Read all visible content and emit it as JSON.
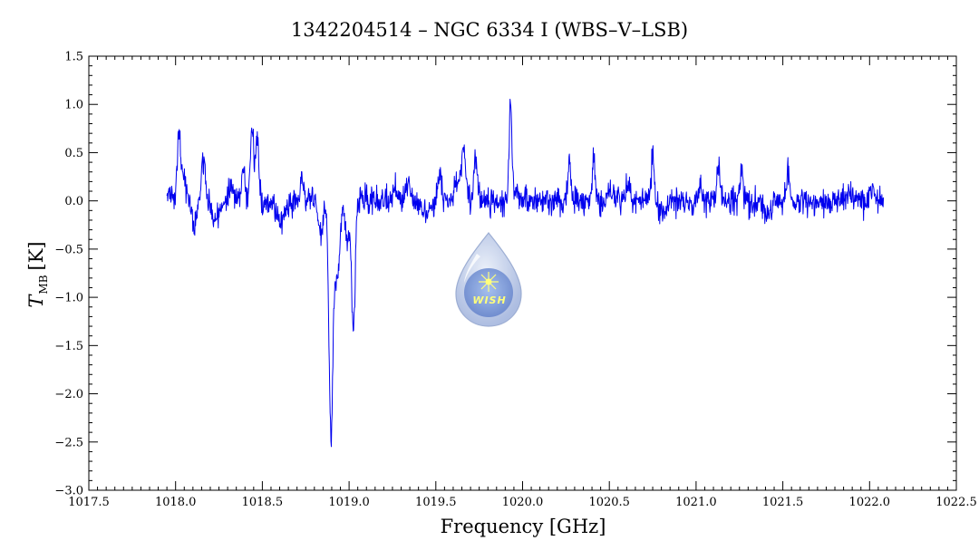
{
  "chart_data": {
    "type": "line",
    "title": "1342204514 – NGC 6334 I (WBS–V–LSB)",
    "xlabel": "Frequency [GHz]",
    "ylabel_main": "T",
    "ylabel_sub": "MB",
    "ylabel_unit": "[K]",
    "xlim": [
      1017.5,
      1022.5
    ],
    "ylim": [
      -3.0,
      1.5
    ],
    "x_ticks": [
      1017.5,
      1018.0,
      1018.5,
      1019.0,
      1019.5,
      1020.0,
      1020.5,
      1021.0,
      1021.5,
      1022.0,
      1022.5
    ],
    "x_tick_labels": [
      "1017.5",
      "1018.0",
      "1018.5",
      "1019.0",
      "1019.5",
      "1020.0",
      "1020.5",
      "1021.0",
      "1021.5",
      "1022.0",
      "1022.5"
    ],
    "y_ticks": [
      -3.0,
      -2.5,
      -2.0,
      -1.5,
      -1.0,
      -0.5,
      0.0,
      0.5,
      1.0,
      1.5
    ],
    "y_tick_labels": [
      "−3.0",
      "−2.5",
      "−2.0",
      "−1.5",
      "−1.0",
      "−0.5",
      "0.0",
      "0.5",
      "1.0",
      "1.5"
    ],
    "grid": false,
    "line_color": "#0000ee",
    "x_range": [
      1017.95,
      1022.08
    ],
    "noise_level": 0.07,
    "features": [
      {
        "center": 1017.96,
        "amplitude": 0.12,
        "width": 0.012
      },
      {
        "center": 1018.02,
        "amplitude": 0.72,
        "width": 0.01
      },
      {
        "center": 1018.05,
        "amplitude": 0.25,
        "width": 0.01
      },
      {
        "center": 1018.11,
        "amplitude": -0.22,
        "width": 0.015
      },
      {
        "center": 1018.16,
        "amplitude": 0.42,
        "width": 0.012
      },
      {
        "center": 1018.23,
        "amplitude": -0.18,
        "width": 0.02
      },
      {
        "center": 1018.32,
        "amplitude": 0.15,
        "width": 0.015
      },
      {
        "center": 1018.39,
        "amplitude": 0.3,
        "width": 0.01
      },
      {
        "center": 1018.44,
        "amplitude": 0.72,
        "width": 0.01
      },
      {
        "center": 1018.47,
        "amplitude": 0.62,
        "width": 0.01
      },
      {
        "center": 1018.61,
        "amplitude": -0.18,
        "width": 0.025
      },
      {
        "center": 1018.73,
        "amplitude": 0.22,
        "width": 0.01
      },
      {
        "center": 1018.84,
        "amplitude": -0.35,
        "width": 0.015
      },
      {
        "center": 1018.895,
        "amplitude": -2.45,
        "width": 0.011
      },
      {
        "center": 1018.93,
        "amplitude": -0.85,
        "width": 0.015
      },
      {
        "center": 1018.99,
        "amplitude": -0.45,
        "width": 0.012
      },
      {
        "center": 1019.025,
        "amplitude": -1.4,
        "width": 0.01
      },
      {
        "center": 1019.26,
        "amplitude": 0.14,
        "width": 0.012
      },
      {
        "center": 1019.34,
        "amplitude": 0.2,
        "width": 0.012
      },
      {
        "center": 1019.44,
        "amplitude": -0.15,
        "width": 0.03
      },
      {
        "center": 1019.52,
        "amplitude": 0.28,
        "width": 0.012
      },
      {
        "center": 1019.62,
        "amplitude": 0.22,
        "width": 0.015
      },
      {
        "center": 1019.66,
        "amplitude": 0.58,
        "width": 0.012
      },
      {
        "center": 1019.73,
        "amplitude": 0.48,
        "width": 0.009
      },
      {
        "center": 1019.93,
        "amplitude": 1.02,
        "width": 0.008
      },
      {
        "center": 1019.96,
        "amplitude": 0.15,
        "width": 0.01
      },
      {
        "center": 1020.27,
        "amplitude": 0.4,
        "width": 0.008
      },
      {
        "center": 1020.41,
        "amplitude": 0.45,
        "width": 0.008
      },
      {
        "center": 1020.5,
        "amplitude": 0.12,
        "width": 0.01
      },
      {
        "center": 1020.61,
        "amplitude": 0.15,
        "width": 0.01
      },
      {
        "center": 1020.75,
        "amplitude": 0.52,
        "width": 0.008
      },
      {
        "center": 1020.81,
        "amplitude": -0.14,
        "width": 0.02
      },
      {
        "center": 1021.02,
        "amplitude": 0.14,
        "width": 0.012
      },
      {
        "center": 1021.13,
        "amplitude": 0.4,
        "width": 0.008
      },
      {
        "center": 1021.26,
        "amplitude": 0.3,
        "width": 0.008
      },
      {
        "center": 1021.41,
        "amplitude": -0.15,
        "width": 0.015
      },
      {
        "center": 1021.53,
        "amplitude": 0.38,
        "width": 0.008
      },
      {
        "center": 1021.88,
        "amplitude": 0.12,
        "width": 0.01
      },
      {
        "center": 1022.01,
        "amplitude": 0.15,
        "width": 0.01
      }
    ]
  },
  "logo": {
    "text": "WISH",
    "outer_color": "#b9c8e6",
    "inner_color": "#6b8ed0",
    "star_color": "#ffff66"
  }
}
